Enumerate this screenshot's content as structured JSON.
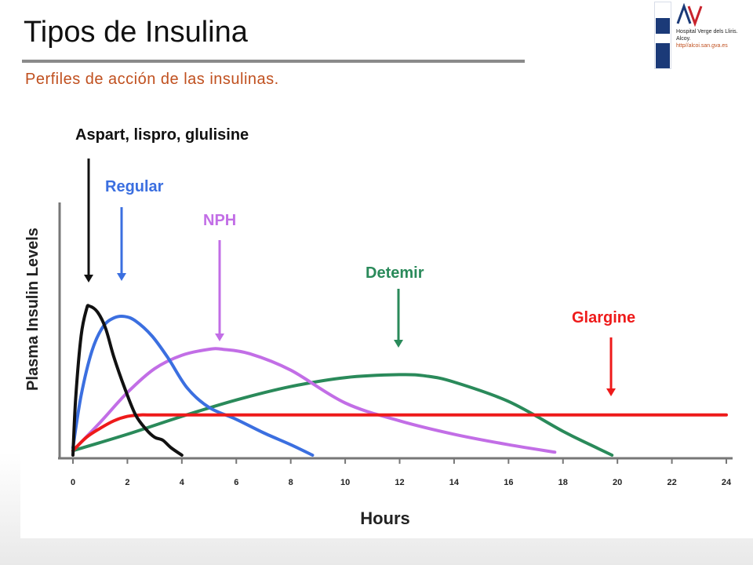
{
  "slide": {
    "title": "Tipos de Insulina",
    "subtitle": "Perfiles de acción de las insulinas."
  },
  "logo": {
    "mark_text": "AV",
    "line1": "Hospital Verge dels Lliris.",
    "line2": "Alcoy.",
    "url": "http//alcoi.san.gva.es"
  },
  "chart_data": {
    "type": "line",
    "xlabel": "Hours",
    "ylabel": "Plasma Insulin Levels",
    "xlim": [
      0,
      24
    ],
    "ylim": [
      0,
      100
    ],
    "xticks": [
      0,
      2,
      4,
      6,
      8,
      10,
      12,
      14,
      16,
      18,
      20,
      22,
      24
    ],
    "grid": false,
    "series": [
      {
        "name": "Aspart, lispro, glulisine",
        "color": "#111111",
        "x": [
          0,
          0.1,
          0.3,
          0.5,
          0.6,
          0.9,
          1.2,
          1.5,
          1.9,
          2.3,
          2.7,
          3.0,
          3.3,
          3.6,
          4.0
        ],
        "y": [
          0,
          38,
          80,
          98,
          100,
          96,
          85,
          66,
          45,
          27,
          17,
          12,
          10,
          5,
          0
        ]
      },
      {
        "name": "Regular",
        "color": "#3b6fe0",
        "x": [
          0,
          0.3,
          0.7,
          1.1,
          1.5,
          1.9,
          2.3,
          2.9,
          3.5,
          4.2,
          5.0,
          6.0,
          7.0,
          8.0,
          8.8
        ],
        "y": [
          5,
          40,
          70,
          86,
          92,
          93,
          90,
          80,
          65,
          45,
          32,
          24,
          15,
          7,
          0
        ]
      },
      {
        "name": "NPH",
        "color": "#c26ee6",
        "x": [
          0,
          1,
          2,
          3,
          4,
          5,
          5.5,
          6.5,
          8,
          10,
          12,
          14,
          16,
          17.7
        ],
        "y": [
          3,
          22,
          42,
          58,
          67,
          71,
          71,
          68,
          57,
          35,
          23,
          14,
          7,
          2
        ]
      },
      {
        "name": "Detemir",
        "color": "#2a8a5a",
        "x": [
          0,
          2,
          4,
          6,
          8,
          10,
          12,
          13,
          14,
          16,
          18,
          19,
          19.8
        ],
        "y": [
          3,
          14,
          26,
          37,
          46,
          52,
          54,
          53,
          49,
          36,
          16,
          7,
          0
        ]
      },
      {
        "name": "Glargine",
        "color": "#ee1a1a",
        "x": [
          0,
          0.5,
          1,
          1.5,
          2,
          2.5,
          3,
          6,
          12,
          18,
          24
        ],
        "y": [
          3,
          12,
          18,
          23,
          26,
          27,
          27,
          27,
          27,
          27,
          27
        ]
      }
    ],
    "annotations": [
      {
        "text": "Aspart, lispro, glulisine",
        "color": "#111111"
      },
      {
        "text": "Regular",
        "color": "#3b6fe0"
      },
      {
        "text": "NPH",
        "color": "#c26ee6"
      },
      {
        "text": "Detemir",
        "color": "#2a8a5a"
      },
      {
        "text": "Glargine",
        "color": "#ee1a1a"
      }
    ]
  }
}
